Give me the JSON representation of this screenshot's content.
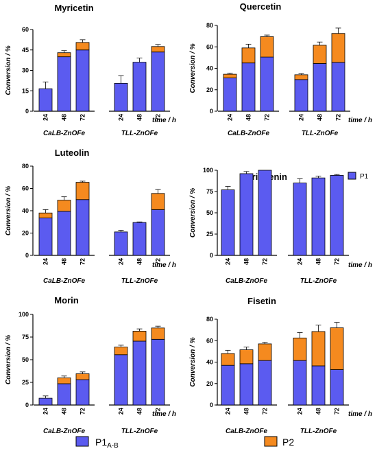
{
  "colors": {
    "p1": "#5b5bf0",
    "p2": "#f58a1f",
    "axis": "#000000"
  },
  "legend": {
    "p1_main": "P1",
    "p1_sub": "A-B",
    "p2": "P2",
    "naringenin_key": "P1"
  },
  "chart_data": [
    {
      "type": "bar",
      "title": "Myricetin",
      "ylabel": "Conversion / %",
      "xlabel": "time / h",
      "ylim": [
        0,
        60
      ],
      "yticks": [
        0,
        15,
        30,
        45,
        60
      ],
      "groups": [
        "CaLB-ZnOFe",
        "TLL-ZnOFe"
      ],
      "categories": [
        "24",
        "48",
        "72"
      ],
      "series": [
        {
          "key": "p1",
          "values": [
            [
              16.5,
              40,
              45
            ],
            [
              20.5,
              36,
              43.5
            ]
          ],
          "errors": [
            [
              5,
              1.5,
              1.5
            ],
            [
              5.5,
              3,
              2
            ]
          ]
        },
        {
          "key": "p2",
          "values": [
            [
              0,
              3,
              5.5
            ],
            [
              0,
              0,
              4
            ]
          ],
          "errors": [
            [
              0,
              1.5,
              2
            ],
            [
              0,
              0,
              1.5
            ]
          ]
        }
      ]
    },
    {
      "type": "bar",
      "title": "Quercetin",
      "ylabel": "Conversion / %",
      "xlabel": "time / h",
      "ylim": [
        0,
        80
      ],
      "yticks": [
        0,
        20,
        40,
        60,
        80
      ],
      "groups": [
        "CaLB-ZnOFe",
        "TLL-ZnOFe"
      ],
      "categories": [
        "24",
        "48",
        "72"
      ],
      "series": [
        {
          "key": "p1",
          "values": [
            [
              31,
              45,
              50.5
            ],
            [
              29.5,
              44.5,
              45.5
            ]
          ],
          "errors": [
            [
              1.5,
              5,
              5
            ],
            [
              2.5,
              5,
              3
            ]
          ]
        },
        {
          "key": "p2",
          "values": [
            [
              3.5,
              14,
              19
            ],
            [
              4.5,
              17,
              27
            ]
          ],
          "errors": [
            [
              1,
              3.5,
              1.5
            ],
            [
              1,
              3,
              5
            ]
          ]
        }
      ]
    },
    {
      "type": "bar",
      "title": "Luteolin",
      "ylabel": "Conversion / %",
      "xlabel": "time / h",
      "ylim": [
        0,
        80
      ],
      "yticks": [
        0,
        20,
        40,
        60,
        80
      ],
      "groups": [
        "CaLB-ZnOFe",
        "TLL-ZnOFe"
      ],
      "categories": [
        "24",
        "48",
        "72"
      ],
      "series": [
        {
          "key": "p1",
          "values": [
            [
              33.5,
              39.5,
              50
            ],
            [
              21,
              29.5,
              41
            ]
          ],
          "errors": [
            [
              3,
              4,
              4
            ],
            [
              1.5,
              0.5,
              4
            ]
          ]
        },
        {
          "key": "p2",
          "values": [
            [
              4.5,
              10,
              15.5
            ],
            [
              0,
              0,
              14.5
            ]
          ],
          "errors": [
            [
              3,
              3,
              1
            ],
            [
              0,
              0,
              3.5
            ]
          ]
        }
      ]
    },
    {
      "type": "bar",
      "title": "Naringenin",
      "ylabel": "Conversion / %",
      "xlabel": "time / h",
      "ylim": [
        0,
        100
      ],
      "yticks": [
        0,
        25,
        50,
        75,
        100
      ],
      "groups": [
        "CaLB-ZnOFe",
        "TLL-ZnOFe"
      ],
      "categories": [
        "24",
        "48",
        "72"
      ],
      "series": [
        {
          "key": "p1",
          "values": [
            [
              77,
              96,
              100
            ],
            [
              85,
              91,
              94
            ]
          ],
          "errors": [
            [
              4,
              2.5,
              0
            ],
            [
              5,
              2,
              1
            ]
          ]
        }
      ]
    },
    {
      "type": "bar",
      "title": "Morin",
      "ylabel": "Conversion / %",
      "xlabel": "time / h",
      "ylim": [
        0,
        100
      ],
      "yticks": [
        0,
        25,
        50,
        75,
        100
      ],
      "groups": [
        "CaLB-ZnOFe",
        "TLL-ZnOFe"
      ],
      "categories": [
        "24",
        "48",
        "72"
      ],
      "series": [
        {
          "key": "p1",
          "values": [
            [
              7.5,
              23.5,
              28
            ],
            [
              55.5,
              70.5,
              72.5
            ]
          ],
          "errors": [
            [
              2.5,
              3,
              2
            ],
            [
              5,
              4,
              4
            ]
          ]
        },
        {
          "key": "p2",
          "values": [
            [
              0,
              6.5,
              6.5
            ],
            [
              8.5,
              11,
              12.5
            ]
          ],
          "errors": [
            [
              0,
              2,
              2
            ],
            [
              2,
              2.5,
              2
            ]
          ]
        }
      ]
    },
    {
      "type": "bar",
      "title": "Fisetin",
      "ylabel": "Conversion / %",
      "xlabel": "time / h",
      "ylim": [
        0,
        80
      ],
      "yticks": [
        0,
        20,
        40,
        60,
        80
      ],
      "groups": [
        "CaLB-ZnOFe",
        "TLL-ZnOFe"
      ],
      "categories": [
        "24",
        "48",
        "72"
      ],
      "series": [
        {
          "key": "p1",
          "values": [
            [
              37,
              38.5,
              41.5
            ],
            [
              41.5,
              36.5,
              33
            ]
          ],
          "errors": [
            [
              3,
              2,
              1.5
            ],
            [
              5,
              7,
              6
            ]
          ]
        },
        {
          "key": "p2",
          "values": [
            [
              11,
              13,
              15.5
            ],
            [
              21,
              32,
              39
            ]
          ],
          "errors": [
            [
              3,
              2.5,
              1.5
            ],
            [
              5,
              6,
              5
            ]
          ]
        }
      ]
    }
  ]
}
